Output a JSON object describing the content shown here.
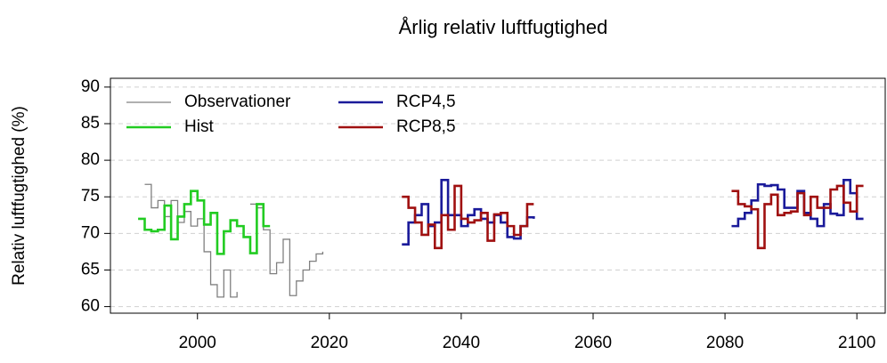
{
  "chart_data": {
    "type": "line",
    "title": "Årlig relativ luftfugtighed",
    "y_label": "Relativ luftfugtighed (%)",
    "xlim": [
      1986.8,
      2104.3
    ],
    "xticks": [
      2000,
      2020,
      2040,
      2060,
      2080,
      2100
    ],
    "ylim": [
      59.1,
      91.2
    ],
    "yticks": [
      60,
      65,
      70,
      75,
      80,
      85,
      90
    ],
    "grid": true,
    "legend": "top-left",
    "step": true,
    "series": [
      {
        "name": "Observationer",
        "color": "#808080",
        "x": [
          1992,
          1993,
          1994,
          1995,
          1996,
          1997,
          1998,
          1999,
          2000,
          2001,
          2002,
          2003,
          2004,
          2005,
          2006,
          2007,
          2008,
          2009,
          2010,
          2011,
          2012,
          2013,
          2014,
          2015,
          2016,
          2017,
          2018,
          2019
        ],
        "values": [
          76.7,
          73.5,
          74.5,
          72.3,
          74.5,
          71.5,
          73.0,
          71.0,
          72.0,
          67.5,
          63.0,
          61.3,
          65.0,
          61.3,
          62.0,
          null,
          74.0,
          73.5,
          70.5,
          64.5,
          66.0,
          69.2,
          61.5,
          63.5,
          65.0,
          66.2,
          67.2,
          67.5
        ]
      },
      {
        "name": "Hist",
        "color": "#22cc22",
        "x": [
          1991,
          1992,
          1993,
          1994,
          1995,
          1996,
          1997,
          1998,
          1999,
          2000,
          2001,
          2002,
          2003,
          2004,
          2005,
          2006,
          2007,
          2008,
          2009,
          2010,
          2011
        ],
        "values": [
          72.0,
          70.5,
          70.3,
          70.5,
          73.8,
          69.2,
          72.3,
          74.0,
          75.8,
          74.5,
          71.2,
          72.8,
          67.2,
          70.3,
          71.8,
          71.0,
          69.5,
          67.3,
          74.0,
          71.0,
          71.0
        ]
      },
      {
        "name": "RCP4,5",
        "color": "#1a1a9a",
        "x": [
          2031,
          2032,
          2033,
          2034,
          2035,
          2036,
          2037,
          2038,
          2039,
          2040,
          2041,
          2042,
          2043,
          2044,
          2045,
          2046,
          2047,
          2048,
          2049,
          2050,
          2051,
          2052,
          2081,
          2082,
          2083,
          2084,
          2085,
          2086,
          2087,
          2088,
          2089,
          2090,
          2091,
          2092,
          2093,
          2094,
          2095,
          2096,
          2097,
          2098,
          2099,
          2100,
          2101
        ],
        "values": [
          68.5,
          71.5,
          72.5,
          74.0,
          71.0,
          71.5,
          77.3,
          72.5,
          72.5,
          71.0,
          72.5,
          73.3,
          72.0,
          71.5,
          72.5,
          71.5,
          69.5,
          69.3,
          71.0,
          72.2,
          72.0,
          null,
          71.0,
          72.0,
          72.8,
          74.5,
          76.7,
          76.5,
          76.6,
          76.0,
          73.5,
          73.5,
          75.8,
          72.8,
          72.0,
          71.0,
          74.0,
          72.7,
          72.5,
          77.3,
          75.5,
          72.0,
          72.0
        ]
      },
      {
        "name": "RCP8,5",
        "color": "#a01010",
        "x": [
          2031,
          2032,
          2033,
          2034,
          2035,
          2036,
          2037,
          2038,
          2039,
          2040,
          2041,
          2042,
          2043,
          2044,
          2045,
          2046,
          2047,
          2048,
          2049,
          2050,
          2051,
          2052,
          2081,
          2082,
          2083,
          2084,
          2085,
          2086,
          2087,
          2088,
          2089,
          2090,
          2091,
          2092,
          2093,
          2094,
          2095,
          2096,
          2097,
          2098,
          2099,
          2100,
          2101
        ],
        "values": [
          75.0,
          73.5,
          71.5,
          69.8,
          71.2,
          68.0,
          72.5,
          70.5,
          76.5,
          72.0,
          71.5,
          71.8,
          72.8,
          69.0,
          72.6,
          72.8,
          71.0,
          69.8,
          71.0,
          74.0,
          74.0,
          null,
          75.8,
          74.0,
          73.7,
          73.3,
          68.0,
          74.0,
          75.3,
          72.5,
          72.8,
          73.0,
          75.5,
          72.5,
          75.0,
          73.5,
          73.5,
          76.0,
          76.5,
          74.2,
          73.0,
          76.5,
          76.5
        ]
      }
    ]
  }
}
